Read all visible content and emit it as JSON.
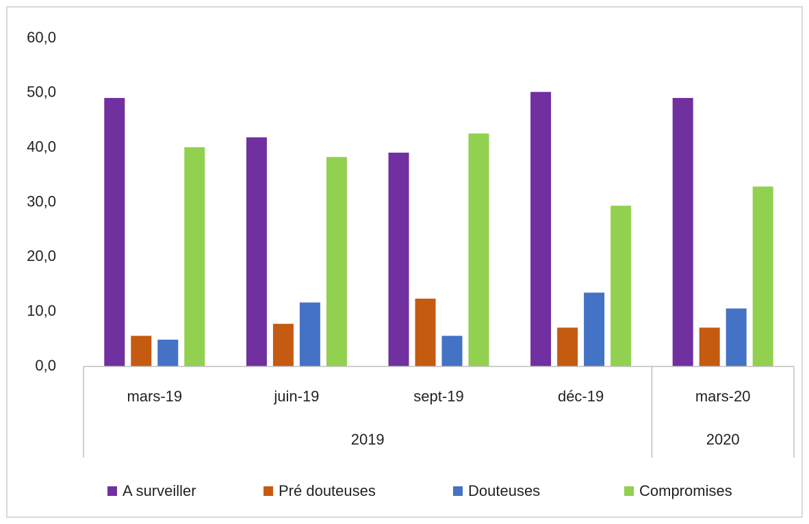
{
  "chart_data": {
    "type": "bar",
    "categories": [
      "mars-19",
      "juin-19",
      "sept-19",
      "déc-19",
      "mars-20"
    ],
    "x_group_labels": [
      "2019",
      "2019",
      "2019",
      "2019",
      "2020"
    ],
    "series": [
      {
        "name": "A surveiller",
        "color": "#7030a0",
        "values": [
          49.1,
          41.9,
          39.1,
          50.2,
          49.1
        ]
      },
      {
        "name": "Pré douteuses",
        "color": "#c55a11",
        "values": [
          5.6,
          7.8,
          12.4,
          7.1,
          7.1
        ]
      },
      {
        "name": "Douteuses",
        "color": "#4472c4",
        "values": [
          4.9,
          11.7,
          5.6,
          13.5,
          10.6
        ]
      },
      {
        "name": "Compromises",
        "color": "#92d050",
        "values": [
          40.1,
          38.3,
          42.6,
          29.4,
          32.9
        ]
      }
    ],
    "ylim": [
      0,
      60
    ],
    "yticks": [
      {
        "value": 0,
        "label": "0,0"
      },
      {
        "value": 10,
        "label": "10,0"
      },
      {
        "value": 20,
        "label": "20,0"
      },
      {
        "value": 30,
        "label": "30,0"
      },
      {
        "value": 40,
        "label": "40,0"
      },
      {
        "value": 50,
        "label": "50,0"
      },
      {
        "value": 60,
        "label": "60,0"
      }
    ],
    "grid": false,
    "legend": "bottom"
  }
}
